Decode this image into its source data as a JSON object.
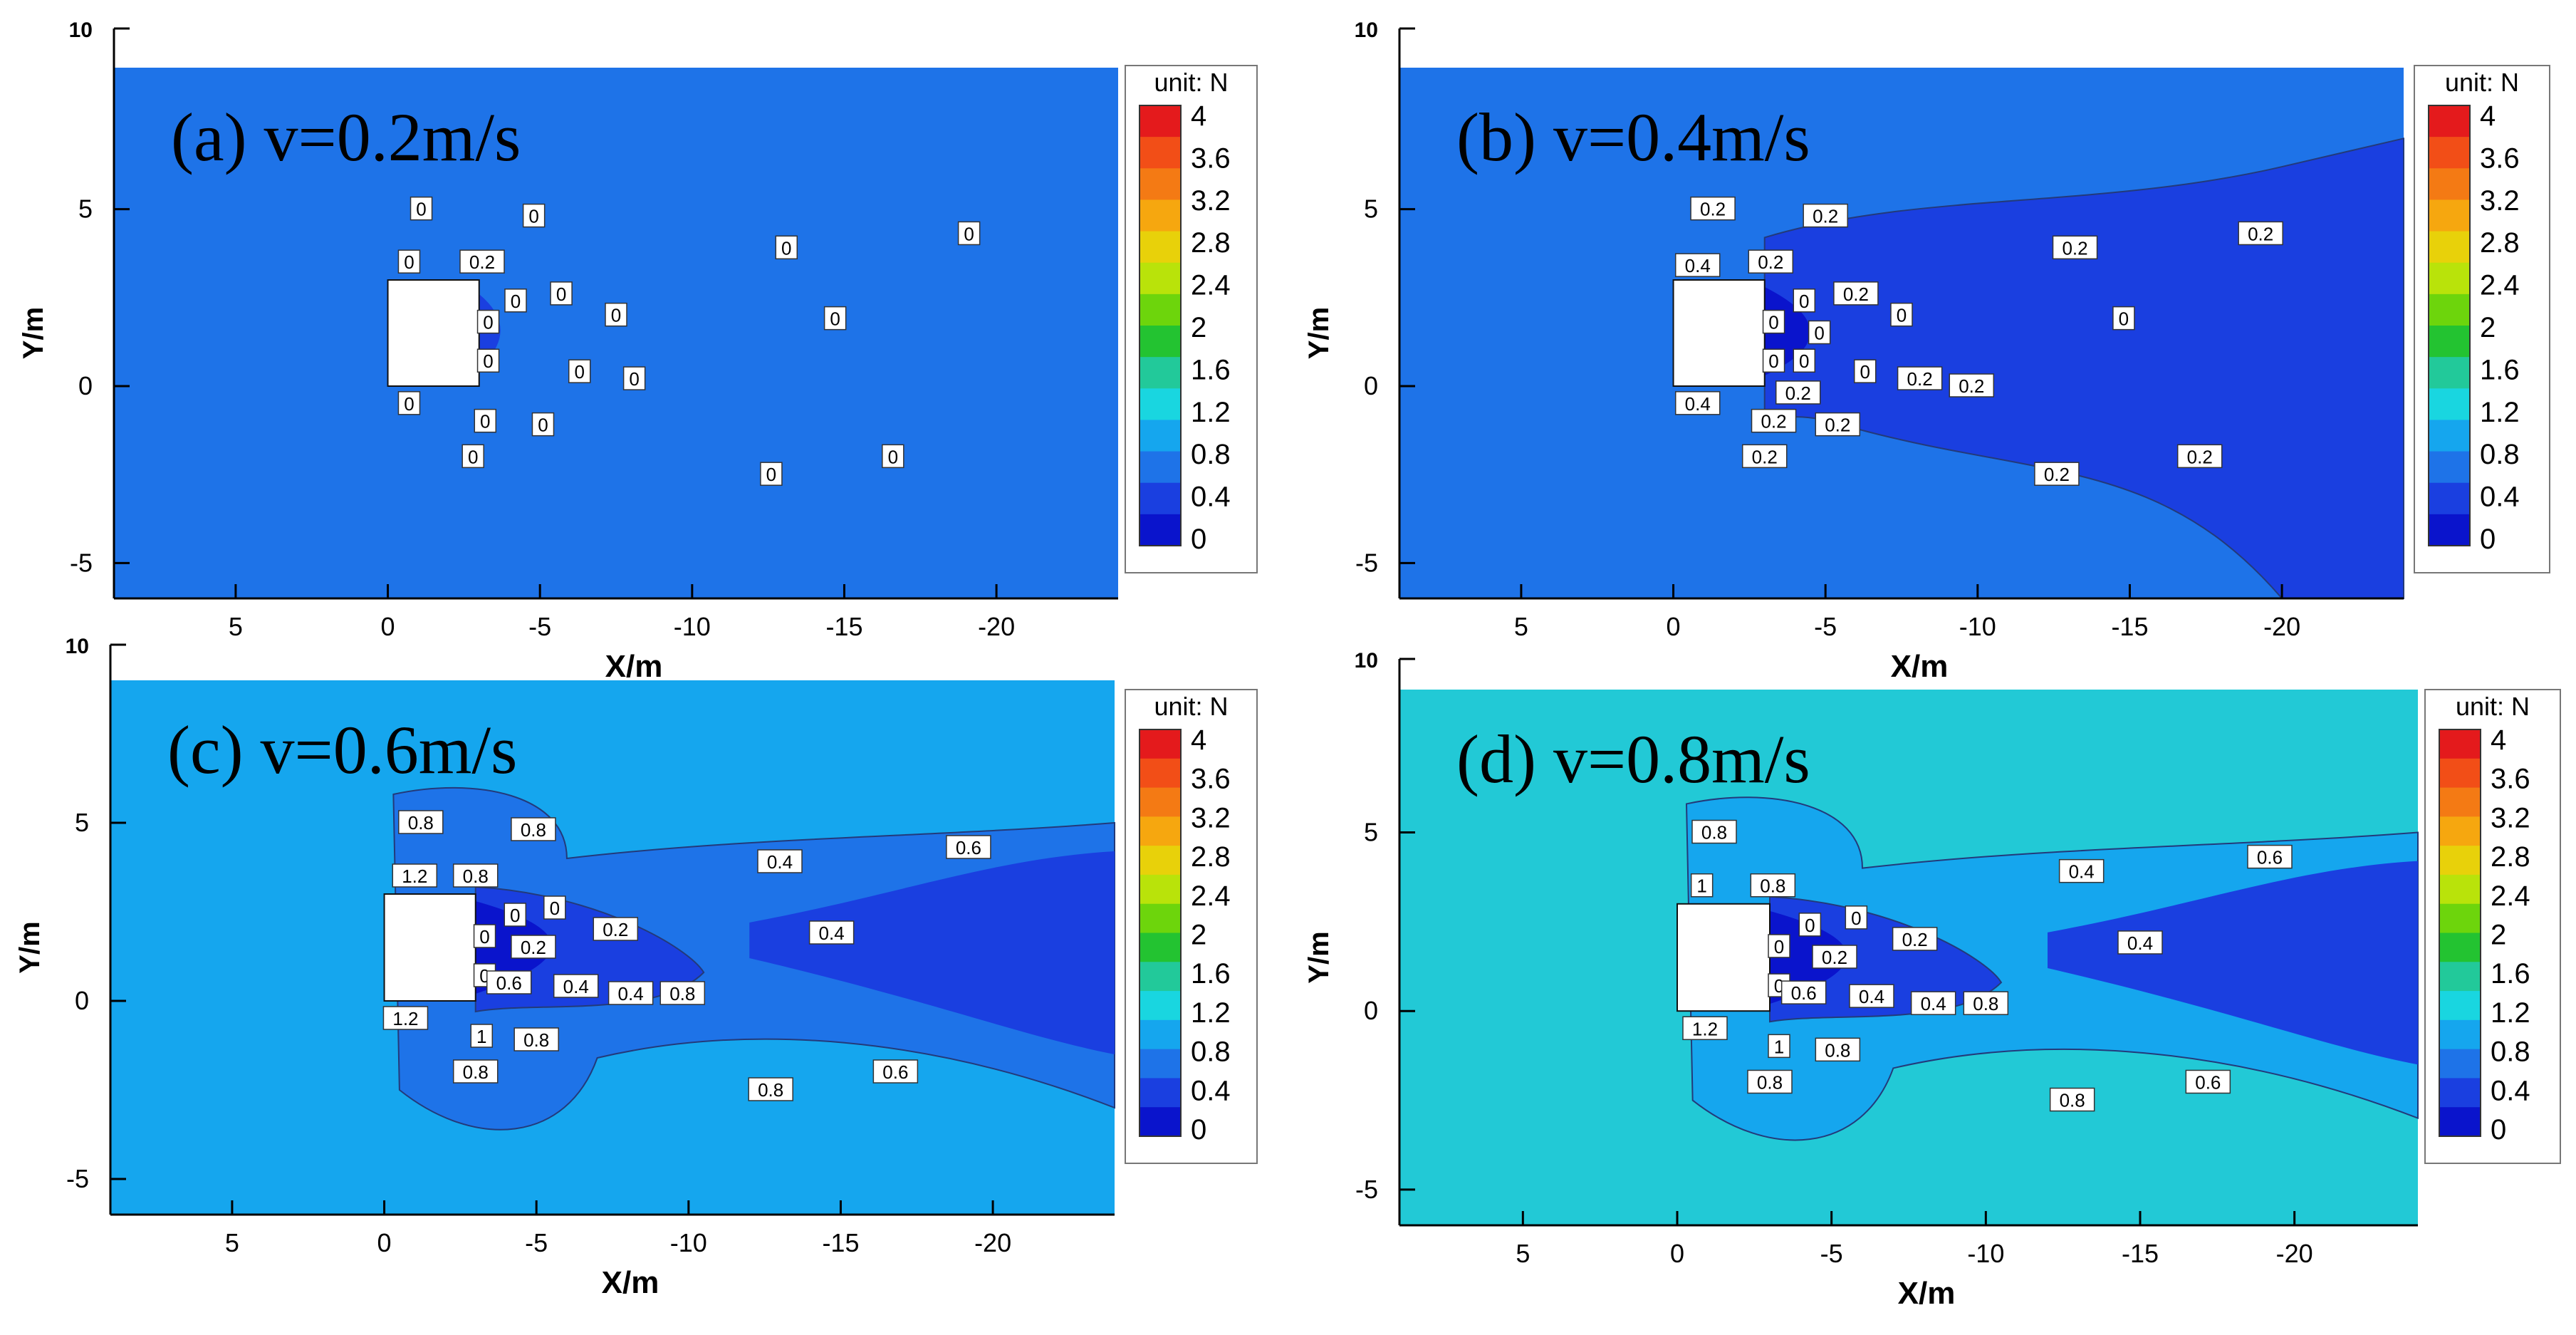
{
  "figure": {
    "description_units": "N",
    "legend_unit_label": "unit: N"
  },
  "colorbar": {
    "ticks": [
      "4",
      "3.6",
      "3.2",
      "2.8",
      "2.4",
      "2",
      "1.6",
      "1.2",
      "0.8",
      "0.4",
      "0"
    ],
    "level_colors": [
      "#e41a1c",
      "#f24e17",
      "#f47a14",
      "#f6a70f",
      "#e8d10a",
      "#b9e30a",
      "#6dd50c",
      "#23c331",
      "#22c99a",
      "#19d6e0",
      "#15a6ee",
      "#1e73e8",
      "#1a3fe0",
      "#0a14cc"
    ]
  },
  "chart_data": [
    {
      "type": "contour",
      "panel": "a",
      "title": "(a)  v=0.2m/s",
      "xlabel": "X/m",
      "ylabel": "Y/m",
      "xlim": [
        9,
        -24
      ],
      "ylim": [
        -6,
        10
      ],
      "xticks": [
        "5",
        "0",
        "-5",
        "-10",
        "-15",
        "-20"
      ],
      "yticks": [
        "10",
        "5",
        "0",
        "-5"
      ],
      "background_color": "#1e73e8",
      "obstacle": {
        "x": [
          0,
          -3
        ],
        "y": [
          0,
          3
        ]
      },
      "contour_labels": [
        {
          "x": -1.1,
          "y": 5.0,
          "text": "0"
        },
        {
          "x": -4.8,
          "y": 4.8,
          "text": "0"
        },
        {
          "x": -0.7,
          "y": 3.5,
          "text": "0"
        },
        {
          "x": -3.1,
          "y": 3.5,
          "text": "0.2"
        },
        {
          "x": -13.1,
          "y": 3.9,
          "text": "0"
        },
        {
          "x": -19.1,
          "y": 4.3,
          "text": "0"
        },
        {
          "x": -4.2,
          "y": 2.4,
          "text": "0"
        },
        {
          "x": -5.7,
          "y": 2.6,
          "text": "0"
        },
        {
          "x": -7.5,
          "y": 2.0,
          "text": "0"
        },
        {
          "x": -14.7,
          "y": 1.9,
          "text": "0"
        },
        {
          "x": -3.3,
          "y": 1.8,
          "text": "0"
        },
        {
          "x": -3.3,
          "y": 0.7,
          "text": "0"
        },
        {
          "x": -6.3,
          "y": 0.4,
          "text": "0"
        },
        {
          "x": -8.1,
          "y": 0.2,
          "text": "0"
        },
        {
          "x": -0.7,
          "y": -0.5,
          "text": "0"
        },
        {
          "x": -3.2,
          "y": -1.0,
          "text": "0"
        },
        {
          "x": -5.1,
          "y": -1.1,
          "text": "0"
        },
        {
          "x": -2.8,
          "y": -2.0,
          "text": "0"
        },
        {
          "x": -12.6,
          "y": -2.5,
          "text": "0"
        },
        {
          "x": -16.6,
          "y": -2.0,
          "text": "0"
        }
      ]
    },
    {
      "type": "contour",
      "panel": "b",
      "title": "(b)  v=0.4m/s",
      "xlabel": "X/m",
      "ylabel": "Y/m",
      "xlim": [
        9,
        -24
      ],
      "ylim": [
        -6,
        10
      ],
      "xticks": [
        "5",
        "0",
        "-5",
        "-10",
        "-15",
        "-20"
      ],
      "yticks": [
        "10",
        "5",
        "0",
        "-5"
      ],
      "background_color": "#1e73e8",
      "obstacle": {
        "x": [
          0,
          -3
        ],
        "y": [
          0,
          3
        ]
      },
      "contour_labels": [
        {
          "x": -1.3,
          "y": 5.0,
          "text": "0.2"
        },
        {
          "x": -5.0,
          "y": 4.8,
          "text": "0.2"
        },
        {
          "x": -13.2,
          "y": 3.9,
          "text": "0.2"
        },
        {
          "x": -19.3,
          "y": 4.3,
          "text": "0.2"
        },
        {
          "x": -0.8,
          "y": 3.4,
          "text": "0.4"
        },
        {
          "x": -3.2,
          "y": 3.5,
          "text": "0.2"
        },
        {
          "x": -4.3,
          "y": 2.4,
          "text": "0"
        },
        {
          "x": -6.0,
          "y": 2.6,
          "text": "0.2"
        },
        {
          "x": -7.5,
          "y": 2.0,
          "text": "0"
        },
        {
          "x": -14.8,
          "y": 1.9,
          "text": "0"
        },
        {
          "x": -3.3,
          "y": 1.8,
          "text": "0"
        },
        {
          "x": -4.8,
          "y": 1.5,
          "text": "0"
        },
        {
          "x": -3.3,
          "y": 0.7,
          "text": "0"
        },
        {
          "x": -4.3,
          "y": 0.7,
          "text": "0"
        },
        {
          "x": -6.3,
          "y": 0.4,
          "text": "0"
        },
        {
          "x": -8.1,
          "y": 0.2,
          "text": "0.2"
        },
        {
          "x": -9.8,
          "y": 0.0,
          "text": "0.2"
        },
        {
          "x": -4.1,
          "y": -0.2,
          "text": "0.2"
        },
        {
          "x": -0.8,
          "y": -0.5,
          "text": "0.4"
        },
        {
          "x": -3.3,
          "y": -1.0,
          "text": "0.2"
        },
        {
          "x": -5.4,
          "y": -1.1,
          "text": "0.2"
        },
        {
          "x": -3.0,
          "y": -2.0,
          "text": "0.2"
        },
        {
          "x": -12.6,
          "y": -2.5,
          "text": "0.2"
        },
        {
          "x": -17.3,
          "y": -2.0,
          "text": "0.2"
        }
      ]
    },
    {
      "type": "contour",
      "panel": "c",
      "title": "(c)  v=0.6m/s",
      "xlabel": "X/m",
      "ylabel": "Y/m",
      "xlim": [
        9,
        -24
      ],
      "ylim": [
        -6,
        10
      ],
      "xticks": [
        "5",
        "0",
        "-5",
        "-10",
        "-15",
        "-20"
      ],
      "yticks": [
        "10",
        "5",
        "0",
        "-5"
      ],
      "background_color": "#15a6ee",
      "obstacle": {
        "x": [
          0,
          -3
        ],
        "y": [
          0,
          3
        ]
      },
      "contour_labels": [
        {
          "x": -1.2,
          "y": 5.0,
          "text": "0.8"
        },
        {
          "x": -4.9,
          "y": 4.8,
          "text": "0.8"
        },
        {
          "x": -13.0,
          "y": 3.9,
          "text": "0.4"
        },
        {
          "x": -19.2,
          "y": 4.3,
          "text": "0.6"
        },
        {
          "x": -1.0,
          "y": 3.5,
          "text": "1.2"
        },
        {
          "x": -3.0,
          "y": 3.5,
          "text": "0.8"
        },
        {
          "x": -4.3,
          "y": 2.4,
          "text": "0"
        },
        {
          "x": -5.6,
          "y": 2.6,
          "text": "0"
        },
        {
          "x": -7.6,
          "y": 2.0,
          "text": "0.2"
        },
        {
          "x": -14.7,
          "y": 1.9,
          "text": "0.4"
        },
        {
          "x": -3.3,
          "y": 1.8,
          "text": "0"
        },
        {
          "x": -4.9,
          "y": 1.5,
          "text": "0.2"
        },
        {
          "x": -3.3,
          "y": 0.7,
          "text": "0"
        },
        {
          "x": -4.1,
          "y": 0.5,
          "text": "0.6"
        },
        {
          "x": -6.3,
          "y": 0.4,
          "text": "0.4"
        },
        {
          "x": -8.1,
          "y": 0.2,
          "text": "0.4"
        },
        {
          "x": -9.8,
          "y": 0.2,
          "text": "0.8"
        },
        {
          "x": -0.7,
          "y": -0.5,
          "text": "1.2"
        },
        {
          "x": -3.2,
          "y": -1.0,
          "text": "1"
        },
        {
          "x": -5.0,
          "y": -1.1,
          "text": "0.8"
        },
        {
          "x": -3.0,
          "y": -2.0,
          "text": "0.8"
        },
        {
          "x": -12.7,
          "y": -2.5,
          "text": "0.8"
        },
        {
          "x": -16.8,
          "y": -2.0,
          "text": "0.6"
        }
      ]
    },
    {
      "type": "contour",
      "panel": "d",
      "title": "(d)  v=0.8m/s",
      "xlabel": "X/m",
      "ylabel": "Y/m",
      "xlim": [
        9,
        -24
      ],
      "ylim": [
        -6,
        10
      ],
      "xticks": [
        "5",
        "0",
        "-5",
        "-10",
        "-15",
        "-20"
      ],
      "yticks": [
        "10",
        "5",
        "0",
        "-5"
      ],
      "background_color": "#22c9d6",
      "obstacle": {
        "x": [
          0,
          -3
        ],
        "y": [
          0,
          3
        ]
      },
      "contour_labels": [
        {
          "x": -1.2,
          "y": 5.0,
          "text": "0.8"
        },
        {
          "x": -13.1,
          "y": 3.9,
          "text": "0.4"
        },
        {
          "x": -19.2,
          "y": 4.3,
          "text": "0.6"
        },
        {
          "x": -0.8,
          "y": 3.5,
          "text": "1"
        },
        {
          "x": -3.1,
          "y": 3.5,
          "text": "0.8"
        },
        {
          "x": -4.3,
          "y": 2.4,
          "text": "0"
        },
        {
          "x": -5.8,
          "y": 2.6,
          "text": "0"
        },
        {
          "x": -7.7,
          "y": 2.0,
          "text": "0.2"
        },
        {
          "x": -15.0,
          "y": 1.9,
          "text": "0.4"
        },
        {
          "x": -3.3,
          "y": 1.8,
          "text": "0"
        },
        {
          "x": -5.1,
          "y": 1.5,
          "text": "0.2"
        },
        {
          "x": -3.3,
          "y": 0.7,
          "text": "0"
        },
        {
          "x": -4.1,
          "y": 0.5,
          "text": "0.6"
        },
        {
          "x": -6.3,
          "y": 0.4,
          "text": "0.4"
        },
        {
          "x": -8.3,
          "y": 0.2,
          "text": "0.4"
        },
        {
          "x": -10.0,
          "y": 0.2,
          "text": "0.8"
        },
        {
          "x": -0.9,
          "y": -0.5,
          "text": "1.2"
        },
        {
          "x": -3.3,
          "y": -1.0,
          "text": "1"
        },
        {
          "x": -5.2,
          "y": -1.1,
          "text": "0.8"
        },
        {
          "x": -3.0,
          "y": -2.0,
          "text": "0.8"
        },
        {
          "x": -12.8,
          "y": -2.5,
          "text": "0.8"
        },
        {
          "x": -17.2,
          "y": -2.0,
          "text": "0.6"
        }
      ]
    }
  ]
}
